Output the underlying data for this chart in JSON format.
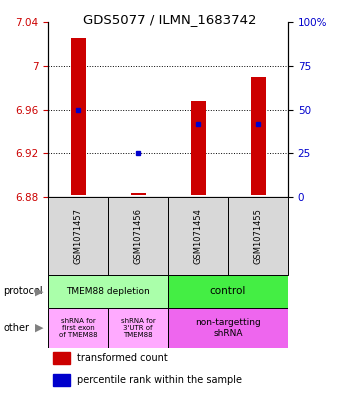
{
  "title": "GDS5077 / ILMN_1683742",
  "samples": [
    "GSM1071457",
    "GSM1071456",
    "GSM1071454",
    "GSM1071455"
  ],
  "red_tops": [
    7.025,
    6.884,
    6.968,
    6.99
  ],
  "red_bottoms": [
    6.882,
    6.882,
    6.882,
    6.882
  ],
  "blue_values": [
    6.96,
    6.92,
    6.947,
    6.947
  ],
  "ylim": [
    6.88,
    7.04
  ],
  "yticks": [
    6.88,
    6.92,
    6.96,
    7.0,
    7.04
  ],
  "ytick_labels": [
    "6.88",
    "6.92",
    "6.96",
    "7",
    "7.04"
  ],
  "right_yticks_pct": [
    0,
    25,
    50,
    75,
    100
  ],
  "right_ytick_labels": [
    "0",
    "25",
    "50",
    "75",
    "100%"
  ],
  "dotted_lines": [
    6.92,
    6.96,
    7.0
  ],
  "protocol_labels": [
    "TMEM88 depletion",
    "control"
  ],
  "protocol_color_left": "#aaffaa",
  "protocol_color_right": "#44ee44",
  "other_labels_left1": "shRNA for\nfirst exon\nof TMEM88",
  "other_labels_left2": "shRNA for\n3'UTR of\nTMEM88",
  "other_labels_right": "non-targetting\nshRNA",
  "other_color_left": "#ffaaff",
  "other_color_right": "#ee66ee",
  "bg_color": "#ffffff",
  "red_color": "#cc0000",
  "blue_color": "#0000cc",
  "sample_bg": "#d8d8d8",
  "legend_red": "transformed count",
  "legend_blue": "percentile rank within the sample",
  "bar_width": 0.25
}
